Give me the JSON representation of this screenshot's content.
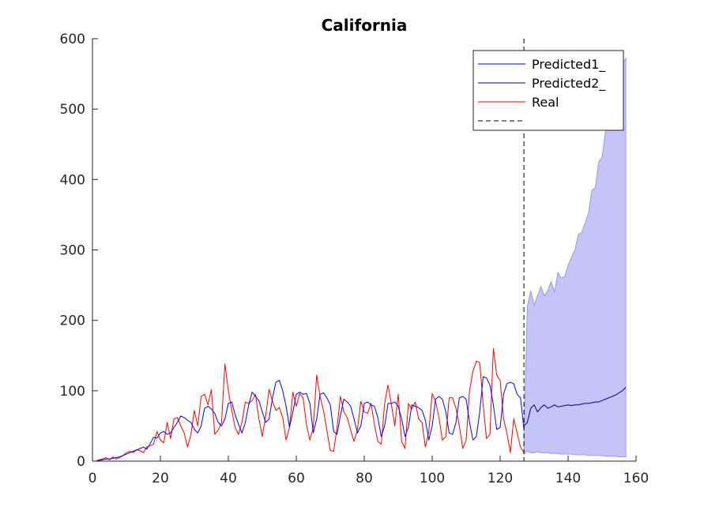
{
  "chart_data": {
    "type": "line",
    "title": "California",
    "xlabel": "",
    "ylabel": "",
    "xlim": [
      0,
      160
    ],
    "ylim": [
      0,
      600
    ],
    "xticks": [
      0,
      20,
      40,
      60,
      80,
      100,
      120,
      140,
      160
    ],
    "yticks": [
      0,
      100,
      200,
      300,
      400,
      500,
      600
    ],
    "grid": false,
    "legend_position": "top-right",
    "legend": [
      "Predicted1_",
      "Predicted2_",
      "Real",
      ""
    ],
    "vline_x": 127,
    "colors": {
      "predicted1": "#0000ff",
      "predicted2": "#00008b",
      "real": "#ff0000",
      "band_fill": "#c4c4f9",
      "band_edge": "#8c8cd9",
      "vline": "#000000"
    },
    "series": [
      {
        "name": "Predicted1_",
        "x": [
          1,
          2,
          3,
          4,
          5,
          6,
          7,
          8,
          9,
          10,
          11,
          12,
          13,
          14,
          15,
          16,
          17,
          18,
          19,
          20,
          21,
          22,
          23,
          24,
          25,
          26,
          27,
          28,
          29,
          30,
          31,
          32,
          33,
          34,
          35,
          36,
          37,
          38,
          39,
          40,
          41,
          42,
          43,
          44,
          45,
          46,
          47,
          48,
          49,
          50,
          51,
          52,
          53,
          54,
          55,
          56,
          57,
          58,
          59,
          60,
          61,
          62,
          63,
          64,
          65,
          66,
          67,
          68,
          69,
          70,
          71,
          72,
          73,
          74,
          75,
          76,
          77,
          78,
          79,
          80,
          81,
          82,
          83,
          84,
          85,
          86,
          87,
          88,
          89,
          90,
          91,
          92,
          93,
          94,
          95,
          96,
          97,
          98,
          99,
          100,
          101,
          102,
          103,
          104,
          105,
          106,
          107,
          108,
          109,
          110,
          111,
          112,
          113,
          114,
          115,
          116,
          117,
          118,
          119,
          120,
          121,
          122,
          123,
          124,
          125,
          126,
          127
        ],
        "y": [
          0,
          1,
          2,
          3,
          3,
          4,
          5,
          6,
          8,
          10,
          12,
          14,
          16,
          18,
          20,
          17,
          25,
          34,
          33,
          40,
          42,
          38,
          40,
          48,
          55,
          64,
          62,
          58,
          55,
          45,
          40,
          50,
          75,
          78,
          74,
          68,
          55,
          50,
          60,
          82,
          84,
          66,
          52,
          40,
          55,
          80,
          98,
          92,
          86,
          70,
          55,
          60,
          90,
          112,
          115,
          100,
          78,
          48,
          70,
          95,
          98,
          95,
          96,
          82,
          40,
          60,
          95,
          97,
          90,
          80,
          42,
          38,
          65,
          88,
          84,
          78,
          60,
          40,
          50,
          82,
          84,
          80,
          78,
          62,
          35,
          50,
          82,
          82,
          84,
          78,
          60,
          35,
          48,
          80,
          78,
          76,
          72,
          58,
          30,
          50,
          88,
          92,
          88,
          70,
          40,
          38,
          55,
          90,
          92,
          88,
          55,
          30,
          35,
          70,
          120,
          118,
          108,
          80,
          45,
          48,
          95,
          110,
          112,
          110,
          95,
          90,
          45
        ]
      },
      {
        "name": "Predicted2_",
        "x": [
          127,
          128,
          129,
          130,
          131,
          132,
          133,
          134,
          135,
          136,
          137,
          138,
          139,
          140,
          141,
          142,
          143,
          144,
          145,
          146,
          147,
          148,
          149,
          150,
          151,
          152,
          153,
          154,
          155,
          156,
          157
        ],
        "y": [
          50,
          55,
          75,
          80,
          70,
          76,
          80,
          75,
          77,
          80,
          77,
          78,
          79,
          80,
          79,
          80,
          80,
          81,
          82,
          82,
          83,
          84,
          84,
          86,
          88,
          90,
          92,
          94,
          97,
          100,
          105
        ]
      },
      {
        "name": "Real",
        "x": [
          1,
          2,
          3,
          4,
          5,
          6,
          7,
          8,
          9,
          10,
          11,
          12,
          13,
          14,
          15,
          16,
          17,
          18,
          19,
          20,
          21,
          22,
          23,
          24,
          25,
          26,
          27,
          28,
          29,
          30,
          31,
          32,
          33,
          34,
          35,
          36,
          37,
          38,
          39,
          40,
          41,
          42,
          43,
          44,
          45,
          46,
          47,
          48,
          49,
          50,
          51,
          52,
          53,
          54,
          55,
          56,
          57,
          58,
          59,
          60,
          61,
          62,
          63,
          64,
          65,
          66,
          67,
          68,
          69,
          70,
          71,
          72,
          73,
          74,
          75,
          76,
          77,
          78,
          79,
          80,
          81,
          82,
          83,
          84,
          85,
          86,
          87,
          88,
          89,
          90,
          91,
          92,
          93,
          94,
          95,
          96,
          97,
          98,
          99,
          100,
          101,
          102,
          103,
          104,
          105,
          106,
          107,
          108,
          109,
          110,
          111,
          112,
          113,
          114,
          115,
          116,
          117,
          118,
          119,
          120,
          121,
          122,
          123,
          124,
          125,
          126,
          127
        ],
        "y": [
          0,
          2,
          3,
          5,
          2,
          6,
          3,
          5,
          8,
          12,
          14,
          12,
          16,
          15,
          12,
          20,
          22,
          24,
          42,
          30,
          26,
          55,
          32,
          60,
          62,
          50,
          40,
          20,
          38,
          72,
          50,
          92,
          95,
          80,
          102,
          38,
          44,
          55,
          138,
          100,
          72,
          48,
          38,
          55,
          84,
          82,
          86,
          95,
          60,
          35,
          65,
          102,
          85,
          72,
          76,
          62,
          30,
          48,
          98,
          78,
          96,
          90,
          52,
          30,
          48,
          122,
          92,
          72,
          44,
          15,
          14,
          48,
          92,
          70,
          62,
          44,
          28,
          45,
          85,
          70,
          68,
          82,
          52,
          28,
          24,
          82,
          108,
          80,
          50,
          95,
          28,
          18,
          82,
          74,
          84,
          60,
          55,
          20,
          42,
          96,
          85,
          62,
          30,
          35,
          90,
          90,
          75,
          50,
          18,
          30,
          100,
          128,
          142,
          140,
          80,
          32,
          38,
          160,
          122,
          115,
          60,
          40,
          12,
          60,
          40,
          20,
          12
        ]
      }
    ],
    "bands": [
      {
        "x": [
          127,
          128,
          129,
          130,
          131,
          132,
          133,
          134,
          135,
          136,
          137,
          138,
          139,
          140,
          141,
          142,
          143,
          144,
          145,
          146,
          147,
          148,
          149,
          150,
          151,
          152,
          153,
          154,
          155,
          156,
          157
        ],
        "upper": [
          40,
          220,
          242,
          222,
          235,
          248,
          235,
          242,
          255,
          240,
          268,
          260,
          262,
          278,
          290,
          300,
          322,
          325,
          338,
          352,
          385,
          388,
          425,
          432,
          468,
          478,
          508,
          528,
          548,
          565,
          572
        ],
        "lower": [
          10,
          14,
          12,
          12,
          13,
          12,
          12,
          12,
          11,
          11,
          11,
          10,
          10,
          10,
          10,
          9,
          9,
          9,
          9,
          8,
          8,
          8,
          8,
          8,
          7,
          7,
          7,
          7,
          6,
          6,
          6
        ]
      }
    ]
  }
}
